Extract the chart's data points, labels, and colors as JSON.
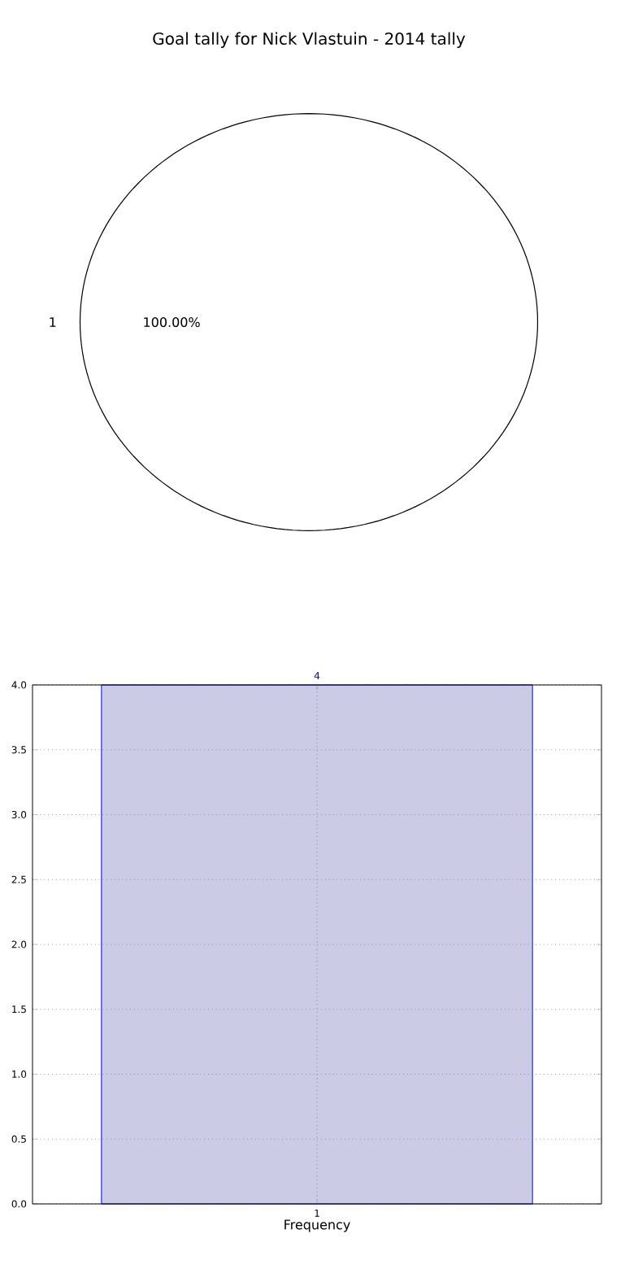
{
  "chart_data": [
    {
      "type": "pie",
      "title": "Goal tally for Nick Vlastuin - 2014 tally",
      "categories": [
        "1"
      ],
      "values": [
        100
      ],
      "colors": [
        "#ffffff"
      ],
      "value_labels": [
        "100.00%"
      ]
    },
    {
      "type": "bar",
      "categories": [
        "1"
      ],
      "values": [
        4
      ],
      "color": "#cbcbe5",
      "xlabel": "Frequency",
      "ylim": [
        0,
        4
      ],
      "yticks": [
        {
          "value": 0,
          "label": "0.0"
        },
        {
          "value": 0.5,
          "label": "0.5"
        },
        {
          "value": 1,
          "label": "1.0"
        },
        {
          "value": 1.5,
          "label": "1.5"
        },
        {
          "value": 2,
          "label": "2.0"
        },
        {
          "value": 2.5,
          "label": "2.5"
        },
        {
          "value": 3,
          "label": "3.0"
        },
        {
          "value": 3.5,
          "label": "3.5"
        },
        {
          "value": 4,
          "label": "4.0"
        }
      ],
      "grid": true,
      "data_labels": true
    }
  ]
}
